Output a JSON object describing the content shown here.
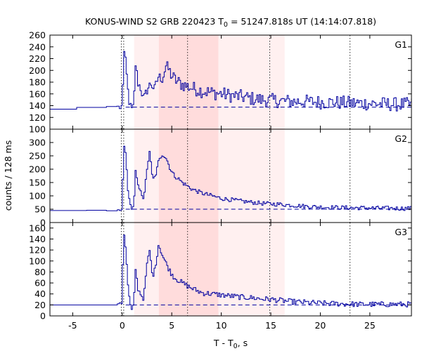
{
  "chart_data": {
    "type": "line",
    "title": {
      "prefix": "KONUS-WIND S2 GRB 220423 T",
      "sub": "0",
      "suffix": " = 51247.818s UT (14:14:07.818)"
    },
    "xlabel": {
      "prefix": "T - T",
      "sub": "0",
      "suffix": ", s"
    },
    "ylabel": "counts / 128 ms",
    "xlim": [
      -7.3,
      29.2
    ],
    "xticks": [
      -5,
      0,
      5,
      10,
      15,
      20,
      25
    ],
    "xtick_labels": [
      "-5",
      "0",
      "5",
      "10",
      "15",
      "20",
      "25"
    ],
    "shaded_regions": [
      {
        "x0": 1.2,
        "x1": 16.4,
        "color": "#fff0f0"
      },
      {
        "x0": 3.7,
        "x1": 9.7,
        "color": "#ffdcdc"
      }
    ],
    "vertical_dotted_lines": [
      -0.1,
      0.15,
      6.6,
      14.9,
      23.0
    ],
    "line_color": "#0000a0",
    "panels": [
      {
        "name": "G1",
        "ylim": [
          100,
          260
        ],
        "yticks": [
          100,
          120,
          140,
          160,
          180,
          200,
          220,
          240,
          260
        ],
        "ytick_labels": [
          "100",
          "120",
          "140",
          "160",
          "180",
          "200",
          "220",
          "240",
          "260"
        ],
        "background": 137.5,
        "pre_level": 134,
        "pre_steps": [
          [
            -7.3,
            134
          ],
          [
            -4.6,
            137
          ],
          [
            -1.6,
            138.5
          ],
          [
            -0.55,
            139
          ],
          [
            -0.3,
            135
          ]
        ],
        "key_points": [
          [
            -0.12,
            138
          ],
          [
            0.0,
            175
          ],
          [
            0.12,
            232
          ],
          [
            0.3,
            210
          ],
          [
            0.5,
            168
          ],
          [
            0.7,
            140
          ],
          [
            0.9,
            133
          ],
          [
            1.1,
            138
          ],
          [
            1.3,
            215
          ],
          [
            1.5,
            180
          ],
          [
            1.8,
            170
          ],
          [
            2.1,
            150
          ],
          [
            2.4,
            165
          ],
          [
            2.8,
            178
          ],
          [
            3.2,
            168
          ],
          [
            3.6,
            190
          ],
          [
            4.0,
            185
          ],
          [
            4.4,
            210
          ],
          [
            4.8,
            195
          ],
          [
            5.2,
            185
          ],
          [
            5.6,
            180
          ],
          [
            6.0,
            176
          ],
          [
            7.0,
            170
          ],
          [
            8.0,
            165
          ],
          [
            9.0,
            162
          ],
          [
            10.0,
            160
          ],
          [
            11.0,
            157
          ],
          [
            12.0,
            155
          ],
          [
            13.0,
            152
          ],
          [
            14.0,
            150
          ],
          [
            15.0,
            149
          ],
          [
            16.0,
            148
          ],
          [
            17.0,
            147
          ],
          [
            18.0,
            147
          ],
          [
            20.0,
            146
          ],
          [
            22.0,
            145
          ],
          [
            24.0,
            144
          ],
          [
            26.0,
            143
          ],
          [
            28.0,
            142
          ],
          [
            29.2,
            142
          ]
        ],
        "noise": 12
      },
      {
        "name": "G2",
        "ylim": [
          0,
          350
        ],
        "yticks": [
          0,
          50,
          100,
          150,
          200,
          250,
          300
        ],
        "ytick_labels": [
          "0",
          "50",
          "100",
          "150",
          "200",
          "250",
          "300"
        ],
        "background": 50,
        "pre_level": 45,
        "pre_steps": [
          [
            -7.3,
            45
          ],
          [
            -3.6,
            46
          ],
          [
            -1.6,
            44
          ],
          [
            -0.5,
            48
          ],
          [
            -0.3,
            45
          ]
        ],
        "key_points": [
          [
            -0.12,
            50
          ],
          [
            0.0,
            150
          ],
          [
            0.12,
            288
          ],
          [
            0.3,
            255
          ],
          [
            0.5,
            130
          ],
          [
            0.7,
            70
          ],
          [
            0.9,
            55
          ],
          [
            1.1,
            60
          ],
          [
            1.3,
            200
          ],
          [
            1.5,
            140
          ],
          [
            1.8,
            115
          ],
          [
            2.1,
            90
          ],
          [
            2.4,
            185
          ],
          [
            2.7,
            270
          ],
          [
            3.0,
            160
          ],
          [
            3.3,
            175
          ],
          [
            3.6,
            230
          ],
          [
            4.0,
            255
          ],
          [
            4.4,
            240
          ],
          [
            4.8,
            200
          ],
          [
            5.2,
            175
          ],
          [
            5.6,
            165
          ],
          [
            6.0,
            150
          ],
          [
            7.0,
            125
          ],
          [
            8.0,
            110
          ],
          [
            9.0,
            100
          ],
          [
            10.0,
            90
          ],
          [
            11.0,
            85
          ],
          [
            12.0,
            80
          ],
          [
            13.0,
            76
          ],
          [
            14.0,
            72
          ],
          [
            15.0,
            70
          ],
          [
            16.0,
            68
          ],
          [
            17.0,
            65
          ],
          [
            18.0,
            62
          ],
          [
            20.0,
            58
          ],
          [
            22.0,
            56
          ],
          [
            24.0,
            55
          ],
          [
            26.0,
            54
          ],
          [
            28.0,
            53
          ],
          [
            29.2,
            53
          ]
        ],
        "noise": 8
      },
      {
        "name": "G3",
        "ylim": [
          0,
          170
        ],
        "yticks": [
          0,
          20,
          40,
          60,
          80,
          100,
          120,
          140,
          160
        ],
        "ytick_labels": [
          "0",
          "20",
          "40",
          "60",
          "80",
          "100",
          "120",
          "140",
          "160"
        ],
        "background": 20,
        "pre_level": 20,
        "pre_steps": [
          [
            -7.3,
            20
          ],
          [
            -4.6,
            20
          ],
          [
            -1.6,
            20
          ],
          [
            -0.5,
            22
          ],
          [
            -0.3,
            24
          ]
        ],
        "key_points": [
          [
            -0.12,
            24
          ],
          [
            0.0,
            90
          ],
          [
            0.12,
            152
          ],
          [
            0.3,
            120
          ],
          [
            0.5,
            60
          ],
          [
            0.7,
            25
          ],
          [
            0.9,
            10
          ],
          [
            1.1,
            20
          ],
          [
            1.3,
            90
          ],
          [
            1.5,
            50
          ],
          [
            1.8,
            40
          ],
          [
            2.1,
            30
          ],
          [
            2.4,
            90
          ],
          [
            2.7,
            120
          ],
          [
            3.0,
            70
          ],
          [
            3.3,
            90
          ],
          [
            3.6,
            130
          ],
          [
            4.0,
            110
          ],
          [
            4.4,
            95
          ],
          [
            4.8,
            80
          ],
          [
            5.2,
            70
          ],
          [
            5.6,
            65
          ],
          [
            6.0,
            60
          ],
          [
            7.0,
            50
          ],
          [
            8.0,
            42
          ],
          [
            9.0,
            40
          ],
          [
            10.0,
            38
          ],
          [
            11.0,
            36
          ],
          [
            12.0,
            34
          ],
          [
            13.0,
            33
          ],
          [
            14.0,
            31
          ],
          [
            15.0,
            30
          ],
          [
            16.0,
            28
          ],
          [
            17.0,
            26
          ],
          [
            18.0,
            25
          ],
          [
            20.0,
            23
          ],
          [
            22.0,
            22
          ],
          [
            24.0,
            21
          ],
          [
            26.0,
            21
          ],
          [
            28.0,
            21
          ],
          [
            29.2,
            21
          ]
        ],
        "noise": 5
      }
    ]
  }
}
